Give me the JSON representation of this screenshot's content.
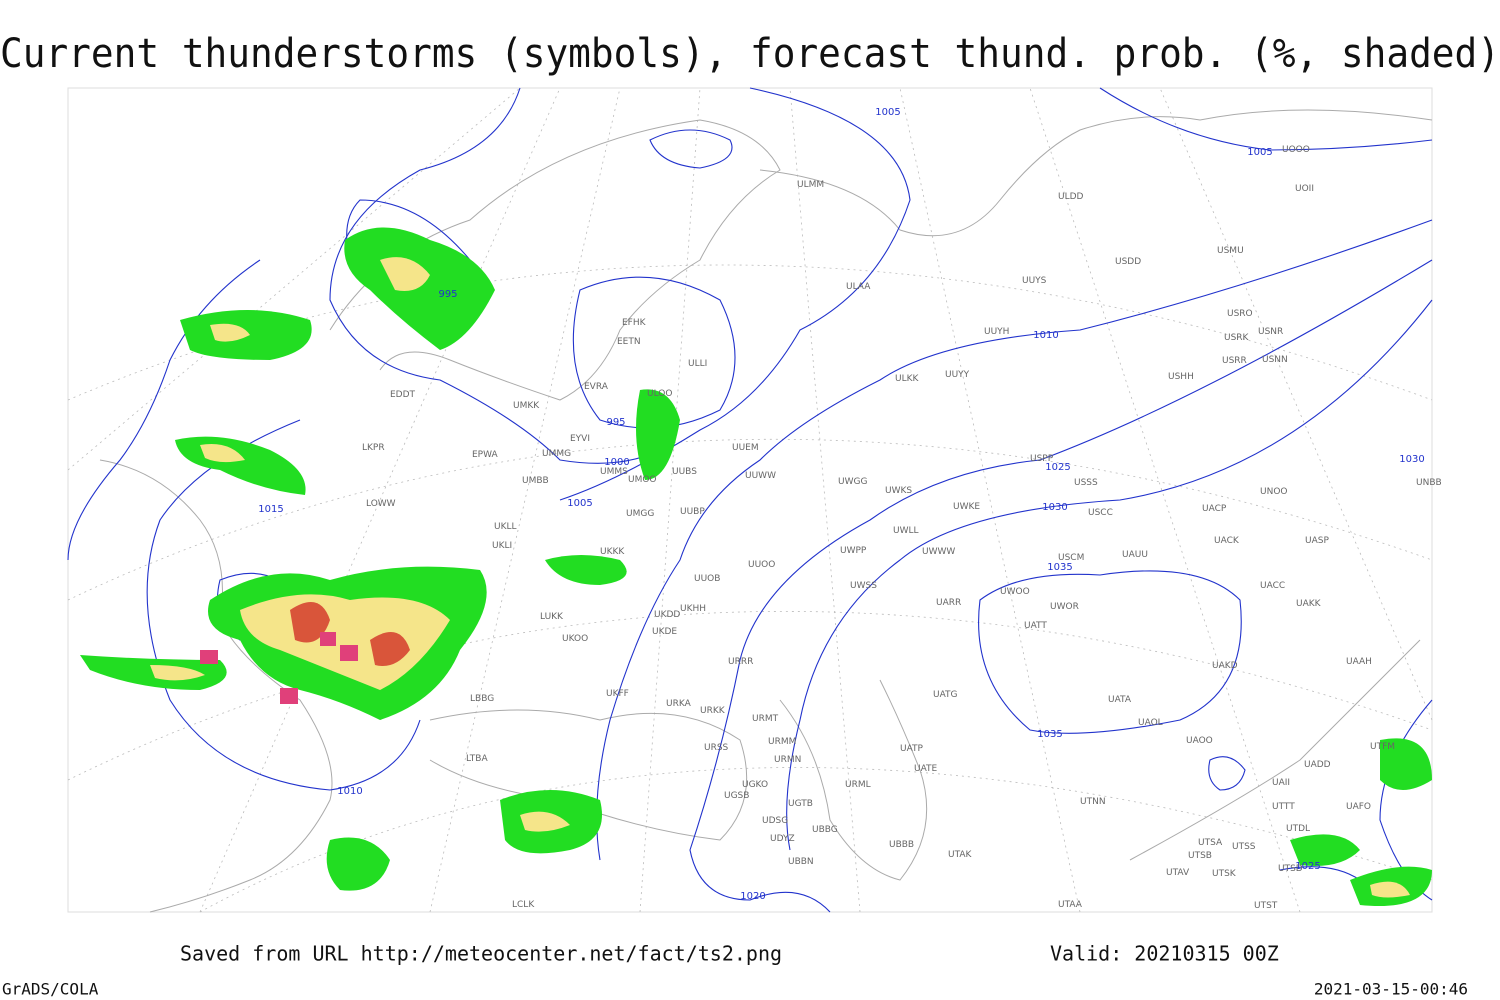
{
  "title": "Current thunderstorms (symbols), forecast thund. prob. (%, shaded)",
  "footer": {
    "source": "Saved from URL http://meteocenter.net/fact/ts2.png",
    "valid": "Valid: 20210315 00Z",
    "software": "GrADS/COLA",
    "timestamp": "2021-03-15-00:46"
  },
  "isobar_labels": [
    "1005",
    "1005",
    "995",
    "1010",
    "995",
    "1000",
    "1005",
    "1015",
    "1025",
    "1030",
    "1030",
    "1035",
    "1035",
    "1010",
    "1020",
    "1025"
  ],
  "stations": [
    "ULMM",
    "ULDD",
    "USDD",
    "USMU",
    "UOOO",
    "UOII",
    "ULAA",
    "UUYS",
    "UUYH",
    "USRO",
    "USRK",
    "USNR",
    "USRR",
    "USNN",
    "USHH",
    "ULKK",
    "UUYY",
    "EFHK",
    "EETN",
    "ULLI",
    "EVRA",
    "ULOO",
    "UMKK",
    "EDDT",
    "EYVI",
    "LKPR",
    "EPWA",
    "UMMG",
    "UMMS",
    "UMOO",
    "UUBS",
    "UUEM",
    "UUWW",
    "UWGG",
    "UWKS",
    "USPP",
    "USSS",
    "UNBB",
    "UNOO",
    "UACP",
    "USCC",
    "UWKE",
    "UWLL",
    "UWWW",
    "UMBB",
    "LOWW",
    "UUBP",
    "UMGG",
    "UKLL",
    "UKLI",
    "UKKK",
    "UUOO",
    "UWPP",
    "UACK",
    "UASP",
    "UAUU",
    "USCM",
    "UWOO",
    "UWOR",
    "UATT",
    "UARR",
    "UWSS",
    "UUOB",
    "UKHH",
    "UKDD",
    "LUKK",
    "UKOO",
    "UKDE",
    "URRR",
    "UACC",
    "UAKK",
    "UAKD",
    "UAAH",
    "UATG",
    "UATA",
    "UAOL",
    "UAOO",
    "LBBG",
    "UKFF",
    "URKA",
    "URKK",
    "URMT",
    "URMM",
    "URMN",
    "URSS",
    "UGKO",
    "UGSB",
    "UGTB",
    "UDSG",
    "UDYZ",
    "UBBG",
    "UBBN",
    "UBBB",
    "URML",
    "UATP",
    "UATE",
    "UTAK",
    "UTNN",
    "UTSA",
    "UTSB",
    "UTSS",
    "UTAV",
    "UTSK",
    "UTAA",
    "LTBA",
    "LCLK",
    "UAII",
    "UADD",
    "UTTT",
    "UTDL",
    "UTFM",
    "UAFO",
    "UTST",
    "UTSD"
  ]
}
